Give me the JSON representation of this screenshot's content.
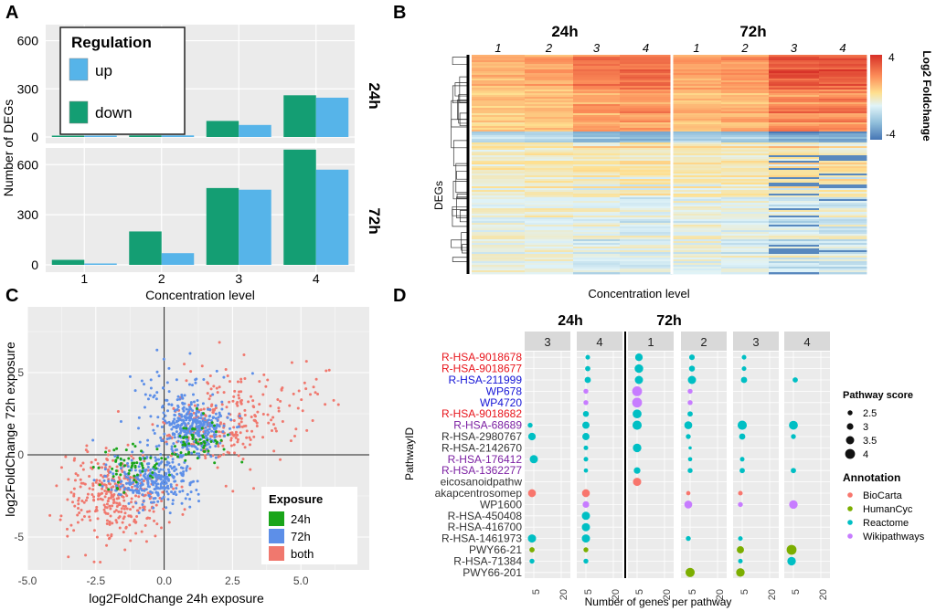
{
  "colors": {
    "up": "#56B4E9",
    "down": "#149E73",
    "pi24h": "#1AA51A",
    "pi72h": "#5D8FE8",
    "piboth": "#F0786E",
    "biocarta": "#F8766D",
    "humancyc": "#7CAE00",
    "reactome": "#00BFC4",
    "wiki": "#C77CFF",
    "name_red": "#E8141B",
    "name_blue": "#1515D6",
    "name_purple": "#7B1FA2",
    "name_gray": "#333333",
    "panel_bg": "#EBEBEB",
    "strip_bg": "#D9D9D9"
  },
  "panels": {
    "a": "A",
    "b": "B",
    "c": "C",
    "d": "D"
  },
  "chart_data": [
    {
      "id": "A",
      "type": "bar",
      "categories": [
        "1",
        "2",
        "3",
        "4"
      ],
      "xlabel": "Concentration level",
      "ylabel": "Number of DEGs",
      "legend_title": "Regulation",
      "facets": [
        {
          "name": "24h",
          "ylim": [
            0,
            700
          ],
          "yticks": [
            0,
            300,
            600
          ],
          "series": [
            {
              "name": "down",
              "values": [
                0,
                10,
                100,
                260
              ]
            },
            {
              "name": "up",
              "values": [
                0,
                10,
                75,
                245
              ]
            }
          ]
        },
        {
          "name": "72h",
          "ylim": [
            0,
            700
          ],
          "yticks": [
            0,
            300,
            600
          ],
          "series": [
            {
              "name": "down",
              "values": [
                30,
                200,
                460,
                690
              ]
            },
            {
              "name": "up",
              "values": [
                5,
                70,
                450,
                570
              ]
            }
          ]
        }
      ],
      "legend": [
        "up",
        "down"
      ]
    },
    {
      "id": "B",
      "type": "heatmap",
      "groups": [
        "24h",
        "72h"
      ],
      "columns": [
        "1",
        "2",
        "3",
        "4",
        "1",
        "2",
        "3",
        "4"
      ],
      "xlabel": "Concentration level",
      "ylabel": "DEGs",
      "colorbar_title": "Log2 Foldchange",
      "colorbar_ticks": [
        4,
        -4
      ]
    },
    {
      "id": "C",
      "type": "scatter",
      "xlabel": "log2FoldChange 24h exposure",
      "ylabel": "log2FoldChange 72h exposure",
      "xlim": [
        -5.0,
        7.5
      ],
      "ylim": [
        -7,
        9
      ],
      "xticks": [
        "-5.0",
        "-2.5",
        "0.0",
        "2.5",
        "5.0"
      ],
      "yticks": [
        "5",
        "0",
        "-5"
      ],
      "legend_title": "Exposure",
      "legend": [
        "24h",
        "72h",
        "both"
      ],
      "series": [
        {
          "name": "both",
          "clusters": [
            {
              "cx": -1.8,
              "cy": -2.5,
              "sx": 0.9,
              "sy": 1.3,
              "n": 340
            },
            {
              "cx": 1.8,
              "cy": 1.8,
              "sx": 1.0,
              "sy": 1.2,
              "n": 200
            },
            {
              "cx": 3.5,
              "cy": 3.5,
              "sx": 1.3,
              "sy": 1.6,
              "n": 90
            }
          ]
        },
        {
          "name": "72h",
          "clusters": [
            {
              "cx": 1.0,
              "cy": 1.6,
              "sx": 0.6,
              "sy": 0.9,
              "n": 330
            },
            {
              "cx": -0.4,
              "cy": -1.5,
              "sx": 0.8,
              "sy": 0.7,
              "n": 300
            },
            {
              "cx": 0.3,
              "cy": 3.5,
              "sx": 1.1,
              "sy": 1.3,
              "n": 60
            }
          ]
        },
        {
          "name": "24h",
          "clusters": [
            {
              "cx": 1.3,
              "cy": 0.8,
              "sx": 0.6,
              "sy": 0.6,
              "n": 60
            },
            {
              "cx": -1.3,
              "cy": -0.7,
              "sx": 0.7,
              "sy": 0.6,
              "n": 60
            }
          ]
        }
      ]
    },
    {
      "id": "D",
      "type": "scatter",
      "ylabel": "PathwayID",
      "xlabel": "Number of genes per pathway",
      "groups": [
        "24h",
        "72h"
      ],
      "facets": [
        "3",
        "4",
        "1",
        "2",
        "3",
        "4"
      ],
      "facet_group": [
        "24h",
        "24h",
        "72h",
        "72h",
        "72h",
        "72h"
      ],
      "xticks": [
        "5",
        "20"
      ],
      "size_legend_title": "Pathway score",
      "size_legend": [
        2.5,
        3.0,
        3.5,
        4.0
      ],
      "annotation_title": "Annotation",
      "annotations": [
        "BioCarta",
        "HumanCyc",
        "Reactome",
        "Wikipathways"
      ],
      "pathways": [
        {
          "id": "R-HSA-9018678",
          "name_color": "red"
        },
        {
          "id": "R-HSA-9018677",
          "name_color": "red"
        },
        {
          "id": "R-HSA-211999",
          "name_color": "blue"
        },
        {
          "id": "WP678",
          "name_color": "blue"
        },
        {
          "id": "WP4720",
          "name_color": "blue"
        },
        {
          "id": "R-HSA-9018682",
          "name_color": "red"
        },
        {
          "id": "R-HSA-68689",
          "name_color": "purple"
        },
        {
          "id": "R-HSA-2980767",
          "name_color": "gray"
        },
        {
          "id": "R-HSA-2142670",
          "name_color": "gray"
        },
        {
          "id": "R-HSA-176412",
          "name_color": "purple"
        },
        {
          "id": "R-HSA-1362277",
          "name_color": "purple"
        },
        {
          "id": "eicosanoidpathw",
          "name_color": "gray"
        },
        {
          "id": "akapcentrosomep",
          "name_color": "gray"
        },
        {
          "id": "WP1600",
          "name_color": "gray"
        },
        {
          "id": "R-HSA-450408",
          "name_color": "gray"
        },
        {
          "id": "R-HSA-416700",
          "name_color": "gray"
        },
        {
          "id": "R-HSA-1461973",
          "name_color": "gray"
        },
        {
          "id": "PWY66-21",
          "name_color": "gray"
        },
        {
          "id": "R-HSA-71384",
          "name_color": "gray"
        },
        {
          "id": "PWY66-201",
          "name_color": "gray"
        }
      ],
      "points": [
        {
          "f": 0,
          "r": 6,
          "x": 3,
          "s": 2.5,
          "a": "Reactome"
        },
        {
          "f": 0,
          "r": 7,
          "x": 4,
          "s": 3.3,
          "a": "Reactome"
        },
        {
          "f": 0,
          "r": 9,
          "x": 5,
          "s": 3.5,
          "a": "Reactome"
        },
        {
          "f": 0,
          "r": 12,
          "x": 4,
          "s": 3.4,
          "a": "BioCarta"
        },
        {
          "f": 0,
          "r": 16,
          "x": 4,
          "s": 3.5,
          "a": "Reactome"
        },
        {
          "f": 0,
          "r": 17,
          "x": 4,
          "s": 2.6,
          "a": "HumanCyc"
        },
        {
          "f": 0,
          "r": 18,
          "x": 4,
          "s": 2.5,
          "a": "Reactome"
        },
        {
          "f": 1,
          "r": 0,
          "x": 6,
          "s": 2.4,
          "a": "Reactome"
        },
        {
          "f": 1,
          "r": 1,
          "x": 6,
          "s": 2.6,
          "a": "Reactome"
        },
        {
          "f": 1,
          "r": 2,
          "x": 6,
          "s": 2.9,
          "a": "Reactome"
        },
        {
          "f": 1,
          "r": 3,
          "x": 5,
          "s": 2.5,
          "a": "Wikipathways"
        },
        {
          "f": 1,
          "r": 4,
          "x": 5,
          "s": 2.5,
          "a": "Wikipathways"
        },
        {
          "f": 1,
          "r": 5,
          "x": 5,
          "s": 2.8,
          "a": "Reactome"
        },
        {
          "f": 1,
          "r": 6,
          "x": 5,
          "s": 3.2,
          "a": "Reactome"
        },
        {
          "f": 1,
          "r": 7,
          "x": 5,
          "s": 3.2,
          "a": "Reactome"
        },
        {
          "f": 1,
          "r": 8,
          "x": 5,
          "s": 2.4,
          "a": "Reactome"
        },
        {
          "f": 1,
          "r": 9,
          "x": 5,
          "s": 2.4,
          "a": "Reactome"
        },
        {
          "f": 1,
          "r": 10,
          "x": 5,
          "s": 2.3,
          "a": "Reactome"
        },
        {
          "f": 1,
          "r": 12,
          "x": 5,
          "s": 3.4,
          "a": "BioCarta"
        },
        {
          "f": 1,
          "r": 13,
          "x": 5,
          "s": 3.0,
          "a": "Wikipathways"
        },
        {
          "f": 1,
          "r": 14,
          "x": 5,
          "s": 3.5,
          "a": "Reactome"
        },
        {
          "f": 1,
          "r": 15,
          "x": 5,
          "s": 3.5,
          "a": "Reactome"
        },
        {
          "f": 1,
          "r": 16,
          "x": 5,
          "s": 3.5,
          "a": "Reactome"
        },
        {
          "f": 1,
          "r": 17,
          "x": 5,
          "s": 2.5,
          "a": "HumanCyc"
        },
        {
          "f": 1,
          "r": 18,
          "x": 5,
          "s": 2.5,
          "a": "Reactome"
        },
        {
          "f": 2,
          "r": 0,
          "x": 6,
          "s": 3.3,
          "a": "Reactome"
        },
        {
          "f": 2,
          "r": 1,
          "x": 6,
          "s": 3.6,
          "a": "Reactome"
        },
        {
          "f": 2,
          "r": 2,
          "x": 6,
          "s": 3.5,
          "a": "Reactome"
        },
        {
          "f": 2,
          "r": 3,
          "x": 5,
          "s": 4.0,
          "a": "Wikipathways"
        },
        {
          "f": 2,
          "r": 4,
          "x": 5,
          "s": 4.0,
          "a": "Wikipathways"
        },
        {
          "f": 2,
          "r": 5,
          "x": 5,
          "s": 3.7,
          "a": "Reactome"
        },
        {
          "f": 2,
          "r": 6,
          "x": 5,
          "s": 3.8,
          "a": "Reactome"
        },
        {
          "f": 2,
          "r": 8,
          "x": 5,
          "s": 3.6,
          "a": "Reactome"
        },
        {
          "f": 2,
          "r": 10,
          "x": 5,
          "s": 3.0,
          "a": "Reactome"
        },
        {
          "f": 2,
          "r": 11,
          "x": 5,
          "s": 3.5,
          "a": "BioCarta"
        },
        {
          "f": 3,
          "r": 0,
          "x": 6,
          "s": 2.7,
          "a": "Reactome"
        },
        {
          "f": 3,
          "r": 1,
          "x": 6,
          "s": 2.8,
          "a": "Reactome"
        },
        {
          "f": 3,
          "r": 2,
          "x": 6,
          "s": 3.5,
          "a": "Reactome"
        },
        {
          "f": 3,
          "r": 3,
          "x": 5,
          "s": 2.5,
          "a": "Wikipathways"
        },
        {
          "f": 3,
          "r": 4,
          "x": 5,
          "s": 2.5,
          "a": "Wikipathways"
        },
        {
          "f": 3,
          "r": 5,
          "x": 5,
          "s": 2.6,
          "a": "Reactome"
        },
        {
          "f": 3,
          "r": 6,
          "x": 4,
          "s": 3.4,
          "a": "Reactome"
        },
        {
          "f": 3,
          "r": 7,
          "x": 4,
          "s": 2.5,
          "a": "Reactome"
        },
        {
          "f": 3,
          "r": 8,
          "x": 5,
          "s": 2.0,
          "a": "Reactome"
        },
        {
          "f": 3,
          "r": 9,
          "x": 5,
          "s": 2.3,
          "a": "Reactome"
        },
        {
          "f": 3,
          "r": 10,
          "x": 5,
          "s": 2.5,
          "a": "Reactome"
        },
        {
          "f": 3,
          "r": 12,
          "x": 4,
          "s": 2.3,
          "a": "BioCarta"
        },
        {
          "f": 3,
          "r": 13,
          "x": 4,
          "s": 3.4,
          "a": "Wikipathways"
        },
        {
          "f": 3,
          "r": 16,
          "x": 4,
          "s": 2.5,
          "a": "Reactome"
        },
        {
          "f": 3,
          "r": 19,
          "x": 5,
          "s": 3.8,
          "a": "HumanCyc"
        },
        {
          "f": 4,
          "r": 0,
          "x": 6,
          "s": 2.4,
          "a": "Reactome"
        },
        {
          "f": 4,
          "r": 1,
          "x": 6,
          "s": 2.4,
          "a": "Reactome"
        },
        {
          "f": 4,
          "r": 2,
          "x": 6,
          "s": 2.9,
          "a": "Reactome"
        },
        {
          "f": 4,
          "r": 6,
          "x": 5,
          "s": 3.8,
          "a": "Reactome"
        },
        {
          "f": 4,
          "r": 7,
          "x": 5,
          "s": 2.9,
          "a": "Reactome"
        },
        {
          "f": 4,
          "r": 9,
          "x": 5,
          "s": 2.4,
          "a": "Reactome"
        },
        {
          "f": 4,
          "r": 10,
          "x": 5,
          "s": 2.6,
          "a": "Reactome"
        },
        {
          "f": 4,
          "r": 12,
          "x": 4,
          "s": 2.4,
          "a": "BioCarta"
        },
        {
          "f": 4,
          "r": 13,
          "x": 4,
          "s": 2.5,
          "a": "Wikipathways"
        },
        {
          "f": 4,
          "r": 16,
          "x": 4,
          "s": 2.4,
          "a": "Reactome"
        },
        {
          "f": 4,
          "r": 17,
          "x": 4,
          "s": 3.2,
          "a": "HumanCyc"
        },
        {
          "f": 4,
          "r": 18,
          "x": 4,
          "s": 2.4,
          "a": "Reactome"
        },
        {
          "f": 4,
          "r": 19,
          "x": 4,
          "s": 3.6,
          "a": "HumanCyc"
        },
        {
          "f": 5,
          "r": 2,
          "x": 6,
          "s": 2.6,
          "a": "Reactome"
        },
        {
          "f": 5,
          "r": 6,
          "x": 5,
          "s": 3.7,
          "a": "Reactome"
        },
        {
          "f": 5,
          "r": 7,
          "x": 5,
          "s": 2.5,
          "a": "Reactome"
        },
        {
          "f": 5,
          "r": 10,
          "x": 5,
          "s": 2.6,
          "a": "Reactome"
        },
        {
          "f": 5,
          "r": 13,
          "x": 5,
          "s": 3.6,
          "a": "Wikipathways"
        },
        {
          "f": 5,
          "r": 17,
          "x": 4,
          "s": 4.0,
          "a": "HumanCyc"
        },
        {
          "f": 5,
          "r": 18,
          "x": 4,
          "s": 3.6,
          "a": "Reactome"
        }
      ]
    }
  ]
}
